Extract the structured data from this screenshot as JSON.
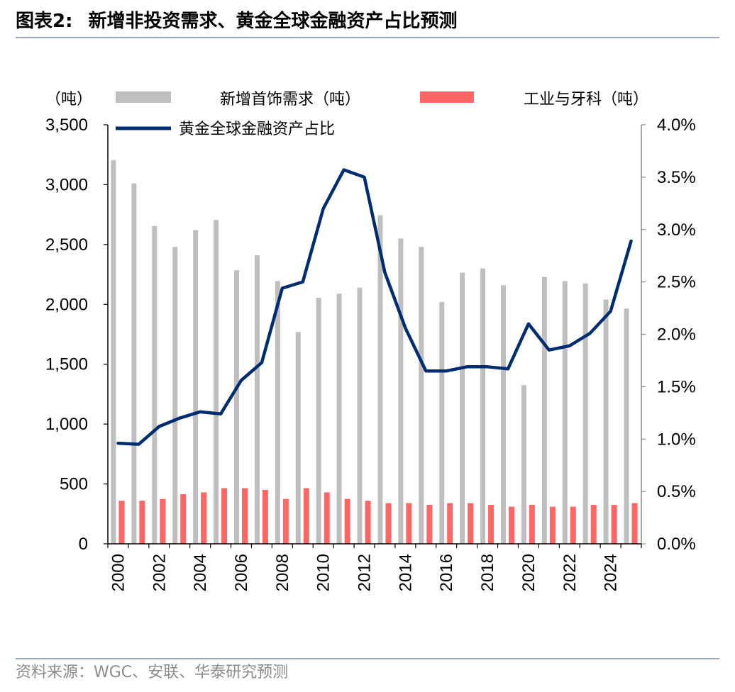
{
  "header": {
    "figure_number": "图表2:",
    "title": "新增非投资需求、黄金全球金融资产占比预测"
  },
  "footer": {
    "source": "资料来源：WGC、安联、华泰研究预测"
  },
  "chart_data": {
    "type": "bar",
    "left_unit_label": "（吨）",
    "series": [
      {
        "name": "新增首饰需求（吨）",
        "kind": "bar",
        "axis": "left",
        "color": "#bfbfbf",
        "values": [
          3205,
          3010,
          2655,
          2480,
          2620,
          2705,
          2285,
          2410,
          2195,
          1770,
          2055,
          2090,
          2140,
          2745,
          2550,
          2480,
          2020,
          2265,
          2300,
          2160,
          1325,
          2230,
          2195,
          2175,
          2040,
          1965
        ]
      },
      {
        "name": "工业与牙科（吨）",
        "kind": "bar",
        "axis": "left",
        "color": "#ff6666",
        "values": [
          360,
          360,
          375,
          415,
          430,
          465,
          465,
          450,
          375,
          465,
          430,
          375,
          360,
          340,
          340,
          325,
          340,
          340,
          325,
          310,
          325,
          310,
          310,
          325,
          325,
          340
        ]
      },
      {
        "name": "黄金全球金融资产占比",
        "kind": "line",
        "axis": "right",
        "color": "#002d72",
        "values": [
          0.96,
          0.95,
          1.12,
          1.2,
          1.26,
          1.24,
          1.56,
          1.73,
          2.44,
          2.5,
          3.2,
          3.57,
          3.5,
          2.59,
          2.06,
          1.65,
          1.65,
          1.69,
          1.69,
          1.67,
          2.1,
          1.85,
          1.89,
          2.01,
          2.22,
          2.89
        ]
      }
    ],
    "years": [
      2000,
      2001,
      2002,
      2003,
      2004,
      2005,
      2006,
      2007,
      2008,
      2009,
      2010,
      2011,
      2012,
      2013,
      2014,
      2015,
      2016,
      2017,
      2018,
      2019,
      2020,
      2021,
      2022,
      2023,
      2024,
      2025
    ],
    "x_tick_labels": [
      "2000",
      "2002",
      "2004",
      "2006",
      "2008",
      "2010",
      "2012",
      "2014",
      "2016",
      "2018",
      "2020",
      "2022",
      "2024"
    ],
    "left_axis": {
      "min": 0,
      "max": 3500,
      "ticks": [
        "0",
        "500",
        "1,000",
        "1,500",
        "2,000",
        "2,500",
        "3,000",
        "3,500"
      ]
    },
    "right_axis": {
      "min": 0,
      "max": 4.0,
      "ticks": [
        "0.0%",
        "0.5%",
        "1.0%",
        "1.5%",
        "2.0%",
        "2.5%",
        "3.0%",
        "3.5%",
        "4.0%"
      ]
    },
    "legend_position": "top",
    "grid": false
  }
}
